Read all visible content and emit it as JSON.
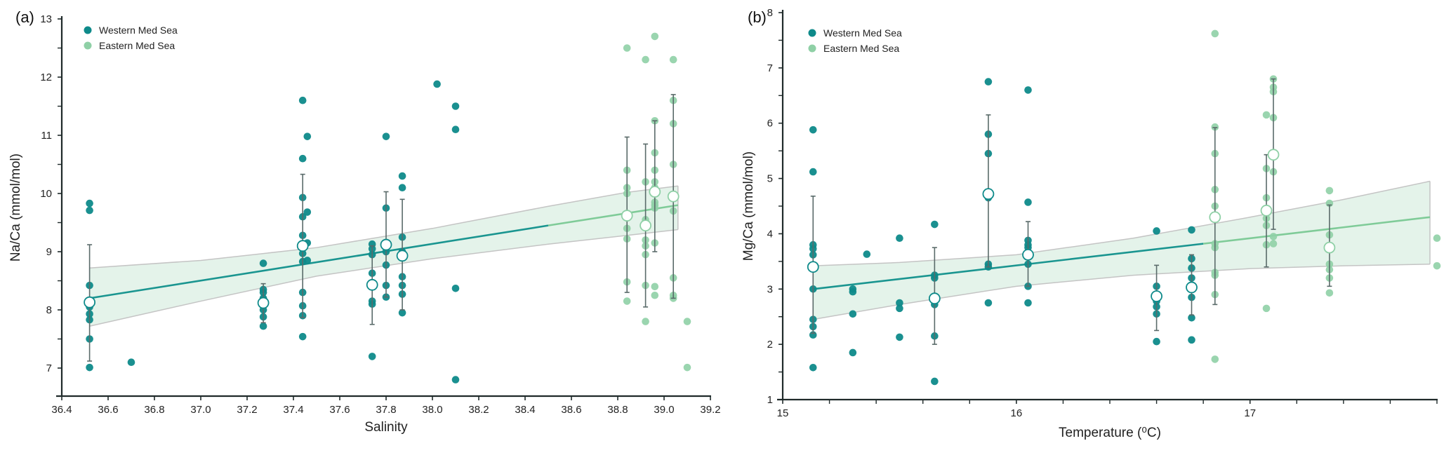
{
  "colors": {
    "western": "#0e8a8a",
    "eastern": "#8fd0a6",
    "western_line": "#1a9590",
    "eastern_line": "#7fcb98",
    "band_fill": "#dff1e6",
    "band_edge": "#c4c4c4",
    "errorbar": "#5a6b6a",
    "axis": "#1f2a2a"
  },
  "chart_data": [
    {
      "id": "a",
      "panel_label": "(a)",
      "type": "scatter",
      "xlabel": "Salinity",
      "ylabel": "Na/Ca (mmol/mol)",
      "xlim": [
        36.4,
        39.2
      ],
      "ylim": [
        6.55,
        13
      ],
      "xticks": [
        36.4,
        36.6,
        36.8,
        37.0,
        37.2,
        37.4,
        37.6,
        37.8,
        38.0,
        38.2,
        38.4,
        38.6,
        38.8,
        39.0,
        39.2
      ],
      "xtick_labels": [
        "36.4",
        "36.6",
        "36.8",
        "37.0",
        "37.2",
        "37.4",
        "37.6",
        "37.8",
        "38.0",
        "38.2",
        "38.4",
        "38.6",
        "38.8",
        "39.0",
        "39.2"
      ],
      "yticks": [
        7,
        8,
        9,
        10,
        11,
        12,
        13
      ],
      "ytick_labels": [
        "7",
        "8",
        "9",
        "10",
        "11",
        "12",
        "13"
      ],
      "yminor": [
        7.5,
        8.5,
        9.5,
        10.5,
        11.5,
        12.5
      ],
      "legend": {
        "position": "top-left",
        "entries": [
          "Western Med Sea",
          "Eastern Med Sea"
        ]
      },
      "series": [
        {
          "name": "Western Med Sea",
          "points": [
            [
              36.52,
              9.83
            ],
            [
              36.52,
              9.71
            ],
            [
              36.52,
              8.42
            ],
            [
              36.52,
              8.05
            ],
            [
              36.52,
              7.93
            ],
            [
              36.52,
              7.83
            ],
            [
              36.52,
              7.5
            ],
            [
              36.52,
              7.01
            ],
            [
              36.7,
              7.1
            ],
            [
              37.27,
              8.8
            ],
            [
              37.27,
              8.35
            ],
            [
              37.27,
              8.3
            ],
            [
              37.27,
              8.2
            ],
            [
              37.27,
              8.0
            ],
            [
              37.27,
              7.88
            ],
            [
              37.27,
              7.72
            ],
            [
              37.44,
              11.6
            ],
            [
              37.44,
              10.6
            ],
            [
              37.44,
              9.93
            ],
            [
              37.44,
              9.6
            ],
            [
              37.44,
              9.28
            ],
            [
              37.44,
              8.97
            ],
            [
              37.44,
              8.83
            ],
            [
              37.44,
              8.3
            ],
            [
              37.44,
              8.07
            ],
            [
              37.44,
              7.9
            ],
            [
              37.44,
              7.54
            ],
            [
              37.46,
              10.98
            ],
            [
              37.46,
              9.68
            ],
            [
              37.46,
              9.15
            ],
            [
              37.46,
              8.85
            ],
            [
              37.74,
              9.13
            ],
            [
              37.74,
              9.05
            ],
            [
              37.74,
              8.95
            ],
            [
              37.74,
              8.63
            ],
            [
              37.74,
              8.15
            ],
            [
              37.74,
              8.1
            ],
            [
              37.74,
              7.2
            ],
            [
              37.8,
              10.98
            ],
            [
              37.8,
              9.75
            ],
            [
              37.8,
              9.0
            ],
            [
              37.8,
              8.77
            ],
            [
              37.8,
              8.42
            ],
            [
              37.8,
              8.22
            ],
            [
              37.87,
              10.3
            ],
            [
              37.87,
              10.1
            ],
            [
              37.87,
              9.25
            ],
            [
              37.87,
              9.0
            ],
            [
              37.87,
              8.57
            ],
            [
              37.87,
              8.42
            ],
            [
              37.87,
              8.27
            ],
            [
              37.87,
              7.95
            ],
            [
              38.02,
              11.88
            ],
            [
              38.1,
              11.5
            ],
            [
              38.1,
              11.1
            ],
            [
              38.1,
              8.37
            ],
            [
              38.1,
              6.8
            ]
          ],
          "means": [
            {
              "x": 36.52,
              "y": 8.13,
              "lo": 7.12,
              "hi": 9.12
            },
            {
              "x": 37.27,
              "y": 8.12,
              "lo": 7.78,
              "hi": 8.45
            },
            {
              "x": 37.44,
              "y": 9.1,
              "lo": 7.87,
              "hi": 10.33
            },
            {
              "x": 37.74,
              "y": 8.43,
              "lo": 7.75,
              "hi": 9.1
            },
            {
              "x": 37.8,
              "y": 9.12,
              "lo": 8.22,
              "hi": 10.03
            },
            {
              "x": 37.87,
              "y": 8.93,
              "lo": 8.0,
              "hi": 9.9
            }
          ]
        },
        {
          "name": "Eastern Med Sea",
          "points": [
            [
              38.84,
              12.5
            ],
            [
              38.84,
              10.4
            ],
            [
              38.84,
              10.1
            ],
            [
              38.84,
              10.0
            ],
            [
              38.84,
              9.58
            ],
            [
              38.84,
              9.4
            ],
            [
              38.84,
              9.22
            ],
            [
              38.84,
              8.48
            ],
            [
              38.84,
              8.15
            ],
            [
              38.92,
              12.3
            ],
            [
              38.92,
              10.2
            ],
            [
              38.92,
              9.55
            ],
            [
              38.92,
              9.2
            ],
            [
              38.92,
              9.1
            ],
            [
              38.92,
              8.95
            ],
            [
              38.92,
              8.42
            ],
            [
              38.92,
              7.8
            ],
            [
              38.96,
              12.7
            ],
            [
              38.96,
              11.25
            ],
            [
              38.96,
              10.7
            ],
            [
              38.96,
              10.4
            ],
            [
              38.96,
              10.2
            ],
            [
              38.96,
              10.1
            ],
            [
              38.96,
              9.85
            ],
            [
              38.96,
              9.8
            ],
            [
              38.96,
              9.75
            ],
            [
              38.96,
              9.15
            ],
            [
              38.96,
              8.4
            ],
            [
              38.96,
              8.25
            ],
            [
              39.04,
              12.3
            ],
            [
              39.04,
              11.6
            ],
            [
              39.04,
              11.2
            ],
            [
              39.04,
              10.5
            ],
            [
              39.04,
              9.7
            ],
            [
              39.04,
              8.55
            ],
            [
              39.04,
              8.25
            ],
            [
              39.04,
              8.2
            ],
            [
              39.1,
              7.8
            ],
            [
              39.1,
              7.01
            ]
          ],
          "means": [
            {
              "x": 38.84,
              "y": 9.62,
              "lo": 8.3,
              "hi": 10.97
            },
            {
              "x": 38.92,
              "y": 9.45,
              "lo": 8.05,
              "hi": 10.85
            },
            {
              "x": 38.96,
              "y": 10.03,
              "lo": 9.0,
              "hi": 11.25
            },
            {
              "x": 39.04,
              "y": 9.95,
              "lo": 8.2,
              "hi": 11.7
            }
          ]
        }
      ],
      "regression": {
        "x": [
          36.52,
          37.0,
          37.5,
          38.0,
          38.5,
          38.84,
          39.06
        ],
        "fit": [
          8.2,
          8.5,
          8.82,
          9.13,
          9.45,
          9.66,
          9.8
        ],
        "lower": [
          7.72,
          8.15,
          8.58,
          8.88,
          9.13,
          9.28,
          9.38
        ],
        "upper": [
          8.72,
          8.85,
          9.07,
          9.4,
          9.78,
          10.02,
          10.13
        ],
        "split_x": 38.5
      }
    },
    {
      "id": "b",
      "panel_label": "(b)",
      "type": "scatter",
      "xlabel": "Temperature (⁰C)",
      "ylabel": "Mg/Ca (mmol/mol)",
      "xlim": [
        15,
        17.8
      ],
      "ylim": [
        1,
        8
      ],
      "xticks": [
        15,
        16,
        17
      ],
      "xtick_labels": [
        "15",
        "16",
        "17"
      ],
      "xminor": [
        15.2,
        15.4,
        15.6,
        15.8,
        16.2,
        16.4,
        16.6,
        16.8,
        17.2,
        17.4,
        17.6,
        17.8
      ],
      "yticks": [
        1,
        2,
        3,
        4,
        5,
        6,
        7,
        8
      ],
      "ytick_labels": [
        "1",
        "2",
        "3",
        "4",
        "5",
        "6",
        "7",
        "8"
      ],
      "yminor": [
        1.5,
        2.5,
        3.5,
        4.5,
        5.5,
        6.5,
        7.5
      ],
      "legend": {
        "position": "top-left",
        "entries": [
          "Western Med Sea",
          "Eastern Med Sea"
        ]
      },
      "series": [
        {
          "name": "Western Med Sea",
          "points": [
            [
              15.13,
              5.88
            ],
            [
              15.13,
              5.12
            ],
            [
              15.13,
              3.8
            ],
            [
              15.13,
              3.73
            ],
            [
              15.13,
              3.62
            ],
            [
              15.13,
              3.0
            ],
            [
              15.13,
              2.45
            ],
            [
              15.13,
              2.32
            ],
            [
              15.13,
              2.17
            ],
            [
              15.13,
              1.58
            ],
            [
              15.3,
              3.0
            ],
            [
              15.3,
              2.95
            ],
            [
              15.3,
              2.55
            ],
            [
              15.3,
              1.85
            ],
            [
              15.36,
              3.63
            ],
            [
              15.5,
              3.92
            ],
            [
              15.5,
              2.75
            ],
            [
              15.5,
              2.65
            ],
            [
              15.5,
              2.13
            ],
            [
              15.65,
              4.17
            ],
            [
              15.65,
              3.25
            ],
            [
              15.65,
              3.2
            ],
            [
              15.65,
              2.85
            ],
            [
              15.65,
              2.72
            ],
            [
              15.65,
              2.15
            ],
            [
              15.65,
              1.33
            ],
            [
              15.88,
              6.75
            ],
            [
              15.88,
              5.8
            ],
            [
              15.88,
              5.45
            ],
            [
              15.88,
              4.65
            ],
            [
              15.88,
              3.45
            ],
            [
              15.88,
              3.4
            ],
            [
              15.88,
              2.75
            ],
            [
              16.05,
              6.6
            ],
            [
              16.05,
              4.57
            ],
            [
              16.05,
              3.88
            ],
            [
              16.05,
              3.8
            ],
            [
              16.05,
              3.75
            ],
            [
              16.05,
              3.45
            ],
            [
              16.05,
              3.05
            ],
            [
              16.05,
              2.75
            ],
            [
              16.6,
              4.05
            ],
            [
              16.6,
              3.05
            ],
            [
              16.6,
              2.78
            ],
            [
              16.6,
              2.68
            ],
            [
              16.6,
              2.55
            ],
            [
              16.6,
              2.05
            ],
            [
              16.75,
              4.07
            ],
            [
              16.75,
              3.55
            ],
            [
              16.75,
              3.38
            ],
            [
              16.75,
              3.2
            ],
            [
              16.75,
              3.05
            ],
            [
              16.75,
              2.85
            ],
            [
              16.75,
              2.48
            ],
            [
              16.75,
              2.08
            ]
          ],
          "means": [
            {
              "x": 15.13,
              "y": 3.4,
              "lo": 2.2,
              "hi": 4.68
            },
            {
              "x": 15.65,
              "y": 2.83,
              "lo": 2.0,
              "hi": 3.75
            },
            {
              "x": 15.88,
              "y": 4.72,
              "lo": 3.4,
              "hi": 6.15
            },
            {
              "x": 16.05,
              "y": 3.62,
              "lo": 3.05,
              "hi": 4.22
            },
            {
              "x": 16.6,
              "y": 2.87,
              "lo": 2.25,
              "hi": 3.43
            },
            {
              "x": 16.75,
              "y": 3.03,
              "lo": 2.53,
              "hi": 3.62
            }
          ]
        },
        {
          "name": "Eastern Med Sea",
          "points": [
            [
              16.85,
              7.62
            ],
            [
              16.85,
              5.93
            ],
            [
              16.85,
              5.45
            ],
            [
              16.85,
              4.8
            ],
            [
              16.85,
              4.5
            ],
            [
              16.85,
              4.3
            ],
            [
              16.85,
              3.82
            ],
            [
              16.85,
              3.75
            ],
            [
              16.85,
              3.3
            ],
            [
              16.85,
              3.25
            ],
            [
              16.85,
              2.9
            ],
            [
              16.85,
              1.73
            ],
            [
              17.07,
              6.15
            ],
            [
              17.07,
              5.18
            ],
            [
              17.07,
              4.65
            ],
            [
              17.07,
              4.45
            ],
            [
              17.07,
              4.28
            ],
            [
              17.07,
              4.15
            ],
            [
              17.07,
              3.8
            ],
            [
              17.07,
              2.65
            ],
            [
              17.1,
              6.8
            ],
            [
              17.1,
              6.65
            ],
            [
              17.1,
              6.57
            ],
            [
              17.1,
              6.1
            ],
            [
              17.1,
              5.12
            ],
            [
              17.1,
              3.95
            ],
            [
              17.1,
              3.82
            ],
            [
              17.34,
              4.78
            ],
            [
              17.34,
              4.55
            ],
            [
              17.34,
              3.98
            ],
            [
              17.34,
              3.45
            ],
            [
              17.34,
              3.35
            ],
            [
              17.34,
              3.2
            ],
            [
              17.34,
              2.93
            ],
            [
              17.8,
              3.92
            ],
            [
              17.8,
              3.42
            ]
          ],
          "means": [
            {
              "x": 16.85,
              "y": 4.3,
              "lo": 2.72,
              "hi": 5.92
            },
            {
              "x": 17.07,
              "y": 4.42,
              "lo": 3.4,
              "hi": 5.43
            },
            {
              "x": 17.1,
              "y": 5.43,
              "lo": 4.08,
              "hi": 6.8
            },
            {
              "x": 17.34,
              "y": 3.75,
              "lo": 3.05,
              "hi": 4.52
            }
          ]
        }
      ],
      "regression": {
        "x": [
          15.13,
          15.5,
          16.0,
          16.5,
          17.0,
          17.4,
          17.77
        ],
        "fit": [
          3.0,
          3.18,
          3.43,
          3.67,
          3.92,
          4.12,
          4.3
        ],
        "lower": [
          2.45,
          2.72,
          3.05,
          3.25,
          3.37,
          3.42,
          3.45
        ],
        "upper": [
          3.42,
          3.48,
          3.62,
          3.92,
          4.3,
          4.62,
          4.95
        ],
        "split_x": 16.8
      }
    }
  ]
}
